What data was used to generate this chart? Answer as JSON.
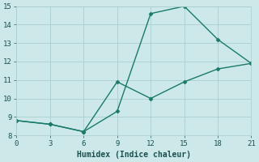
{
  "line1_x": [
    0,
    3,
    6,
    9,
    12,
    15,
    18,
    21
  ],
  "line1_y": [
    8.8,
    8.6,
    8.2,
    9.3,
    14.6,
    15.0,
    13.2,
    11.9
  ],
  "line2_x": [
    0,
    3,
    6,
    9,
    12,
    15,
    18,
    21
  ],
  "line2_y": [
    8.8,
    8.6,
    8.2,
    10.9,
    10.0,
    10.9,
    11.6,
    11.9
  ],
  "line_color": "#1a7a6a",
  "bg_color": "#cce8e8",
  "grid_color": "#aacece",
  "xlabel": "Humidex (Indice chaleur)",
  "xlim": [
    0,
    21
  ],
  "ylim": [
    8,
    15
  ],
  "xticks": [
    0,
    3,
    6,
    9,
    12,
    15,
    18,
    21
  ],
  "yticks": [
    8,
    9,
    10,
    11,
    12,
    13,
    14,
    15
  ],
  "font_color": "#1a5050",
  "font_family": "monospace"
}
